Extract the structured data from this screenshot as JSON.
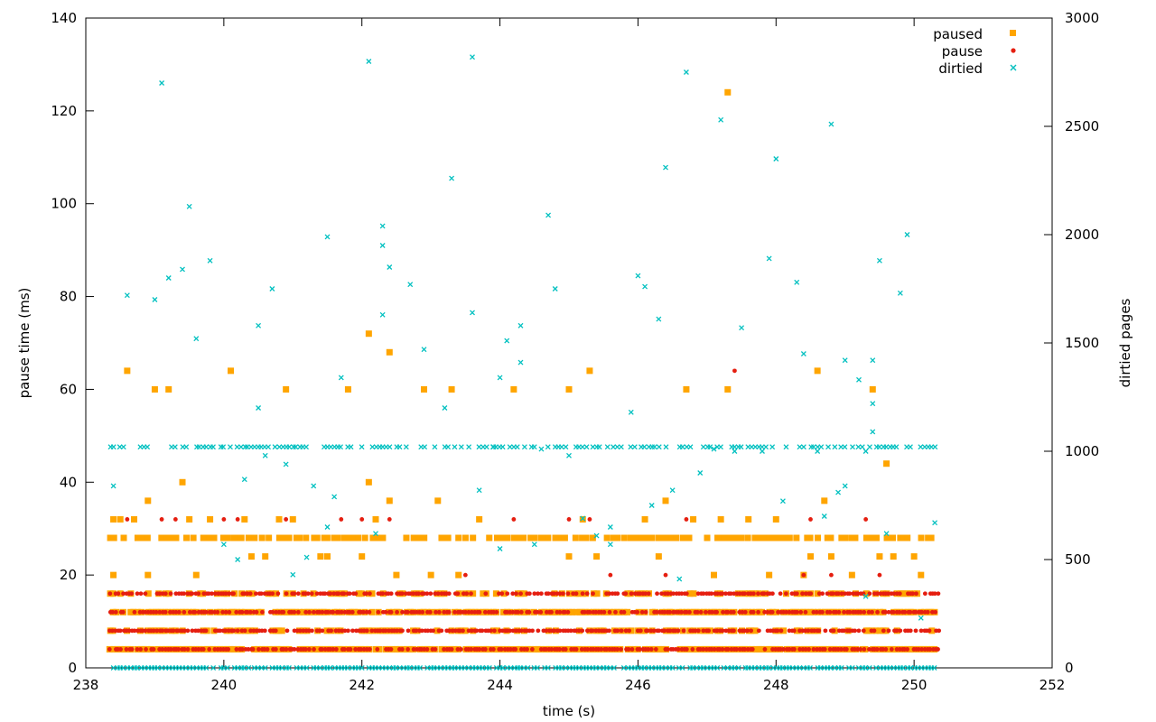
{
  "chart_data": {
    "type": "scatter",
    "xlabel": "time (s)",
    "ylabel": "pause time (ms)",
    "y2label": "dirtied pages",
    "xlim": [
      238,
      252
    ],
    "ylim": [
      0,
      140
    ],
    "y2lim": [
      0,
      3000
    ],
    "x_ticks": [
      238,
      240,
      242,
      244,
      246,
      248,
      250,
      252
    ],
    "y_ticks": [
      0,
      20,
      40,
      60,
      80,
      100,
      120,
      140
    ],
    "y2_ticks": [
      0,
      500,
      1000,
      1500,
      2000,
      2500,
      3000
    ],
    "grid": false,
    "legend_position": "top-right",
    "series": [
      {
        "name": "paused",
        "axis": "y",
        "color": "#ffa500",
        "marker": "square",
        "points": [
          [
            238.6,
            64
          ],
          [
            239.0,
            60
          ],
          [
            239.2,
            60
          ],
          [
            239.4,
            40
          ],
          [
            240.1,
            64
          ],
          [
            240.9,
            60
          ],
          [
            241.8,
            60
          ],
          [
            242.1,
            72
          ],
          [
            242.1,
            40
          ],
          [
            242.4,
            68
          ],
          [
            242.4,
            36
          ],
          [
            242.9,
            60
          ],
          [
            243.1,
            36
          ],
          [
            243.3,
            60
          ],
          [
            244.2,
            60
          ],
          [
            245.0,
            60
          ],
          [
            245.3,
            64
          ],
          [
            246.7,
            60
          ],
          [
            247.3,
            60
          ],
          [
            247.3,
            124
          ],
          [
            248.6,
            64
          ],
          [
            249.4,
            60
          ],
          [
            249.6,
            44
          ],
          [
            238.9,
            36
          ],
          [
            239.6,
            20
          ],
          [
            238.4,
            20
          ],
          [
            238.9,
            20
          ],
          [
            240.3,
            32
          ],
          [
            240.8,
            32
          ],
          [
            241.0,
            32
          ],
          [
            242.5,
            20
          ],
          [
            243.0,
            20
          ],
          [
            243.4,
            20
          ],
          [
            245.2,
            32
          ],
          [
            246.1,
            32
          ],
          [
            246.4,
            36
          ],
          [
            247.1,
            20
          ],
          [
            247.9,
            20
          ],
          [
            248.4,
            20
          ],
          [
            248.7,
            36
          ],
          [
            249.1,
            20
          ],
          [
            250.1,
            20
          ],
          [
            238.4,
            32
          ],
          [
            238.5,
            32
          ],
          [
            238.7,
            32
          ],
          [
            239.5,
            32
          ],
          [
            239.8,
            32
          ],
          [
            240.4,
            24
          ],
          [
            240.6,
            24
          ],
          [
            241.4,
            24
          ],
          [
            241.5,
            24
          ],
          [
            242.0,
            24
          ],
          [
            242.2,
            32
          ],
          [
            243.7,
            32
          ],
          [
            245.0,
            24
          ],
          [
            245.4,
            24
          ],
          [
            246.3,
            24
          ],
          [
            246.8,
            32
          ],
          [
            247.2,
            32
          ],
          [
            247.6,
            32
          ],
          [
            248.0,
            32
          ],
          [
            248.5,
            24
          ],
          [
            248.8,
            24
          ],
          [
            249.5,
            24
          ],
          [
            249.7,
            24
          ],
          [
            250.0,
            24
          ]
        ]
      },
      {
        "name": "pause",
        "axis": "y",
        "color": "#e51e10",
        "marker": "circle",
        "points": [
          [
            238.6,
            32
          ],
          [
            239.1,
            32
          ],
          [
            239.3,
            32
          ],
          [
            240.0,
            32
          ],
          [
            240.2,
            32
          ],
          [
            240.9,
            32
          ],
          [
            241.7,
            32
          ],
          [
            242.0,
            32
          ],
          [
            242.4,
            32
          ],
          [
            243.5,
            20
          ],
          [
            244.2,
            32
          ],
          [
            245.0,
            32
          ],
          [
            245.3,
            32
          ],
          [
            245.6,
            20
          ],
          [
            246.4,
            20
          ],
          [
            246.7,
            32
          ],
          [
            247.4,
            64
          ],
          [
            248.4,
            20
          ],
          [
            248.5,
            32
          ],
          [
            248.8,
            20
          ],
          [
            249.3,
            32
          ],
          [
            249.5,
            20
          ],
          [
            250.1,
            12
          ]
        ]
      },
      {
        "name": "dirtied",
        "axis": "y2",
        "color": "#00c0c0",
        "marker": "cross",
        "points": [
          [
            238.4,
            840
          ],
          [
            238.6,
            1720
          ],
          [
            239.0,
            1700
          ],
          [
            239.1,
            2700
          ],
          [
            239.2,
            1800
          ],
          [
            239.4,
            1840
          ],
          [
            239.5,
            2130
          ],
          [
            239.6,
            1520
          ],
          [
            239.8,
            1880
          ],
          [
            240.0,
            570
          ],
          [
            240.2,
            500
          ],
          [
            240.3,
            870
          ],
          [
            240.5,
            1580
          ],
          [
            240.5,
            1200
          ],
          [
            240.6,
            980
          ],
          [
            240.7,
            1750
          ],
          [
            240.9,
            940
          ],
          [
            241.0,
            430
          ],
          [
            241.2,
            510
          ],
          [
            241.3,
            840
          ],
          [
            241.5,
            650
          ],
          [
            241.5,
            1990
          ],
          [
            241.6,
            790
          ],
          [
            241.7,
            1340
          ],
          [
            242.1,
            2800
          ],
          [
            242.2,
            620
          ],
          [
            242.3,
            2040
          ],
          [
            242.3,
            1950
          ],
          [
            242.3,
            1630
          ],
          [
            242.4,
            1850
          ],
          [
            242.7,
            1770
          ],
          [
            242.9,
            1470
          ],
          [
            243.2,
            1200
          ],
          [
            243.3,
            2260
          ],
          [
            243.6,
            1640
          ],
          [
            243.6,
            2820
          ],
          [
            243.7,
            820
          ],
          [
            243.9,
            1020
          ],
          [
            244.0,
            1340
          ],
          [
            244.0,
            550
          ],
          [
            244.1,
            1510
          ],
          [
            244.3,
            1580
          ],
          [
            244.3,
            1410
          ],
          [
            244.5,
            570
          ],
          [
            244.6,
            1010
          ],
          [
            244.7,
            2090
          ],
          [
            244.8,
            1750
          ],
          [
            245.0,
            980
          ],
          [
            245.2,
            690
          ],
          [
            245.4,
            610
          ],
          [
            245.6,
            650
          ],
          [
            245.6,
            570
          ],
          [
            245.9,
            1180
          ],
          [
            246.0,
            1810
          ],
          [
            246.1,
            1760
          ],
          [
            246.2,
            750
          ],
          [
            246.3,
            1610
          ],
          [
            246.4,
            2310
          ],
          [
            246.5,
            820
          ],
          [
            246.6,
            410
          ],
          [
            246.7,
            2750
          ],
          [
            246.9,
            900
          ],
          [
            247.1,
            1010
          ],
          [
            247.2,
            2530
          ],
          [
            247.4,
            1000
          ],
          [
            247.5,
            1570
          ],
          [
            247.8,
            1000
          ],
          [
            247.9,
            1890
          ],
          [
            248.0,
            2350
          ],
          [
            248.1,
            770
          ],
          [
            248.3,
            1780
          ],
          [
            248.4,
            1450
          ],
          [
            248.6,
            1000
          ],
          [
            248.7,
            700
          ],
          [
            248.8,
            2510
          ],
          [
            248.9,
            810
          ],
          [
            249.0,
            1420
          ],
          [
            249.0,
            840
          ],
          [
            249.2,
            1330
          ],
          [
            249.3,
            1000
          ],
          [
            249.3,
            330
          ],
          [
            249.4,
            1090
          ],
          [
            249.4,
            1220
          ],
          [
            249.4,
            1420
          ],
          [
            249.5,
            1880
          ],
          [
            249.6,
            620
          ],
          [
            249.8,
            1730
          ],
          [
            249.9,
            2000
          ],
          [
            250.1,
            230
          ],
          [
            250.3,
            670
          ]
        ]
      }
    ],
    "bands": {
      "paused": [
        4,
        8,
        12,
        16,
        28
      ],
      "pause": [
        4,
        8,
        12,
        16
      ],
      "dirtied_pause_axis": [
        0,
        47.6
      ]
    }
  }
}
